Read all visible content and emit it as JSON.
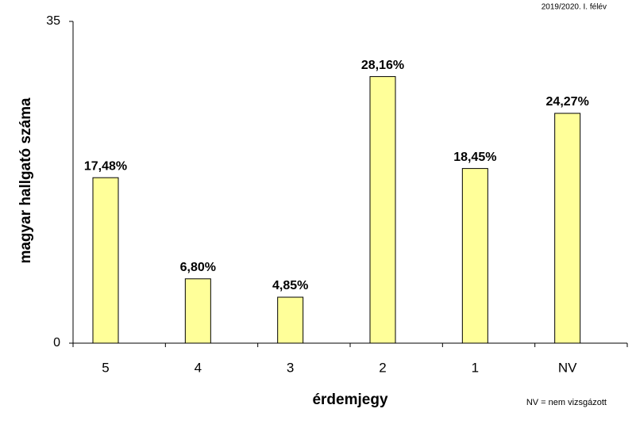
{
  "chart_data": {
    "type": "bar",
    "subtitle": "2019/2020. I. félév",
    "note": "NV = nem vizsgázott",
    "x_label": "érdemjegy",
    "y_label": "magyar hallgató száma",
    "categories": [
      "5",
      "4",
      "3",
      "2",
      "1",
      "NV"
    ],
    "values": [
      18,
      7,
      5,
      29,
      19,
      25
    ],
    "value_labels": [
      "17,48%",
      "6,80%",
      "4,85%",
      "28,16%",
      "18,45%",
      "24,27%"
    ],
    "color": "#ffff99",
    "ylim": [
      0,
      35
    ],
    "yticks": [
      0,
      35
    ],
    "grid": false
  }
}
